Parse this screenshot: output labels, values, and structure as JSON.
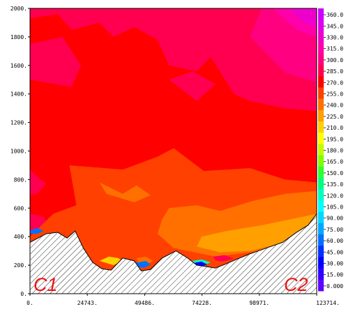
{
  "chart_data": {
    "type": "heatmap",
    "title": "",
    "xlabel": "",
    "ylabel": "",
    "xlim": [
      0,
      123714
    ],
    "ylim": [
      0,
      2000
    ],
    "x_ticks": [
      "0.",
      "24743.",
      "49486.",
      "74228.",
      "98971.",
      "123714."
    ],
    "y_ticks": [
      "0.",
      "200.",
      "400.",
      "600.",
      "800.",
      "1000.",
      "1200.",
      "1400.",
      "1600.",
      "1800.",
      "2000."
    ],
    "colorbar": {
      "labels": [
        "360.0",
        "345.0",
        "330.0",
        "315.0",
        "300.0",
        "285.0",
        "270.0",
        "255.0",
        "240.0",
        "225.0",
        "210.0",
        "195.0",
        "180.0",
        "165.0",
        "150.0",
        "135.0",
        "120.0",
        "105.0",
        "90.00",
        "75.00",
        "60.00",
        "45.00",
        "30.00",
        "15.00",
        "0.000"
      ],
      "colors": [
        "#cc00ff",
        "#dd00ee",
        "#ee00cc",
        "#ff00aa",
        "#ff0080",
        "#ff0050",
        "#ff0000",
        "#ff4000",
        "#ff7000",
        "#ff9f00",
        "#ffd000",
        "#ffff00",
        "#c0ff00",
        "#80ff00",
        "#30ff30",
        "#00ff80",
        "#00ffc0",
        "#00ffff",
        "#00d8ff",
        "#00a8ff",
        "#0070ff",
        "#0030ff",
        "#0000ff",
        "#3000ff",
        "#6000ff"
      ]
    },
    "endpoint_labels": [
      "C1",
      "C2"
    ],
    "terrain_profile": {
      "x": [
        0,
        7000,
        12000,
        16000,
        19500,
        23000,
        27000,
        31000,
        35000,
        40000,
        45000,
        48000,
        52000,
        57000,
        63000,
        68000,
        72000,
        76000,
        80000,
        84000,
        89000,
        95000,
        102000,
        109000,
        115000,
        120000,
        123714
      ],
      "z": [
        360,
        420,
        430,
        390,
        440,
        320,
        220,
        175,
        165,
        250,
        230,
        160,
        170,
        250,
        300,
        250,
        200,
        190,
        180,
        205,
        240,
        280,
        320,
        360,
        430,
        480,
        560
      ]
    },
    "field_regions": [
      {
        "value_range": [
          285,
          300
        ],
        "zone": "magenta background aloft"
      },
      {
        "value_range": [
          270,
          285
        ],
        "zone": "red band above about 800 m"
      },
      {
        "value_range": [
          330,
          360
        ],
        "zone": "upper-right corner near top"
      },
      {
        "value_range": [
          255,
          270
        ],
        "zone": "orange-red lower layer"
      },
      {
        "value_range": [
          225,
          255
        ],
        "zone": "orange pocket above 98971 m near 300-500 m"
      },
      {
        "value_range": [
          0,
          90
        ],
        "zone": "small blue pockets in valleys"
      }
    ]
  },
  "colors": {
    "background": "#ffffff",
    "hatch": "#000000"
  }
}
